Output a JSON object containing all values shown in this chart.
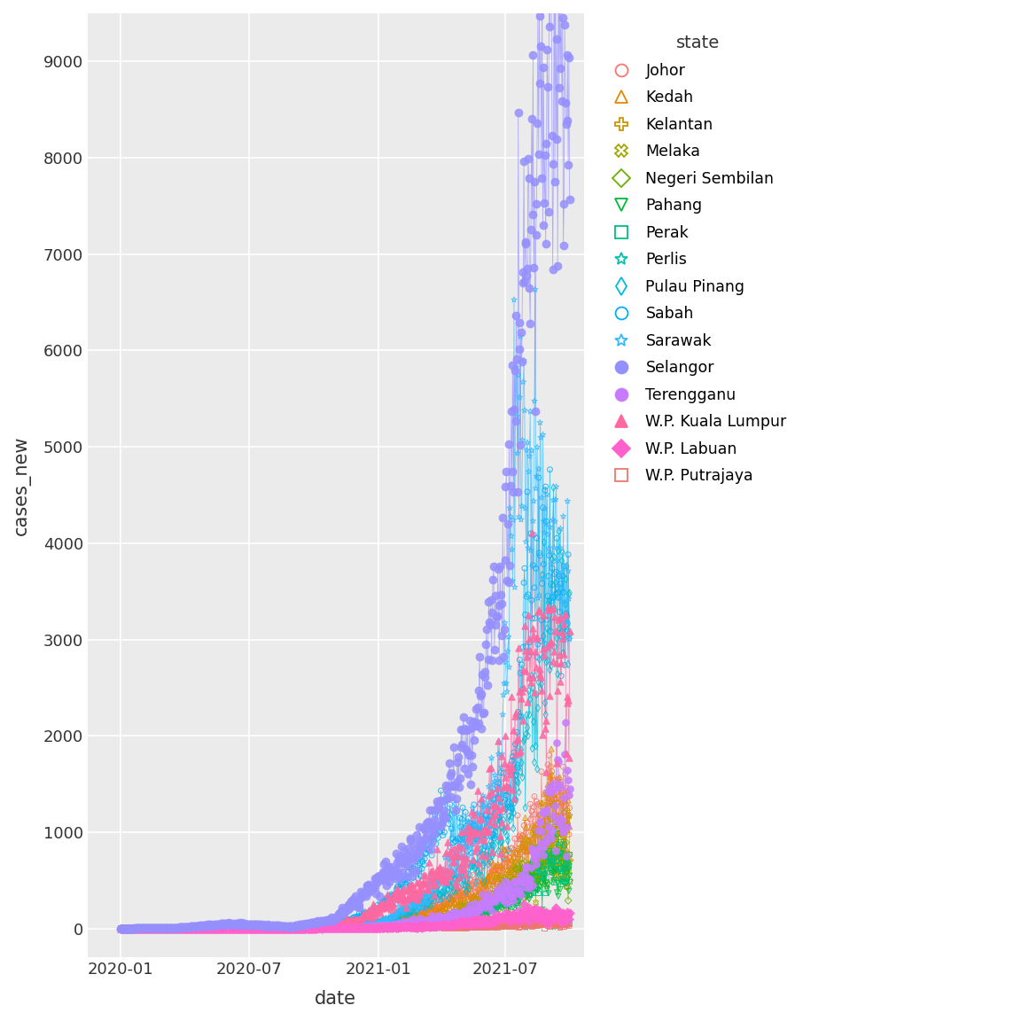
{
  "xlabel": "date",
  "ylabel": "cases_new",
  "legend_title": "state",
  "background_color": "#EBEBEB",
  "grid_color": "#FFFFFF",
  "ylim": [
    -300,
    9500
  ],
  "yticks": [
    0,
    1000,
    2000,
    3000,
    4000,
    5000,
    6000,
    7000,
    8000,
    9000
  ],
  "xtick_dates": [
    "2020-01-01",
    "2020-07-01",
    "2021-01-01",
    "2021-07-01"
  ],
  "xtick_labels": [
    "2020-01",
    "2020-07",
    "2021-01",
    "2021-07"
  ],
  "gg_colors": {
    "Johor": "#F8766D",
    "Kedah": "#E58700",
    "Kelantan": "#C99800",
    "Melaka": "#A3A500",
    "Negeri Sembilan": "#6BB100",
    "Pahang": "#00BA38",
    "Perak": "#00BF7D",
    "Perlis": "#00C0AF",
    "Pulau Pinang": "#00BCD8",
    "Sabah": "#00B0F6",
    "Sarawak": "#35B8FF",
    "Selangor": "#9590FF",
    "Terengganu": "#C77CFF",
    "W.P. Kuala Lumpur": "#FF68A1",
    "W.P. Labuan": "#FF61CC",
    "W.P. Putrajaya": "#F0766D"
  },
  "markers": {
    "Johor": {
      "m": "o",
      "fill": false,
      "ms": 18
    },
    "Kedah": {
      "m": "^",
      "fill": false,
      "ms": 18
    },
    "Kelantan": {
      "m": "P",
      "fill": false,
      "ms": 18
    },
    "Melaka": {
      "m": "X",
      "fill": false,
      "ms": 18
    },
    "Negeri Sembilan": {
      "m": "D",
      "fill": false,
      "ms": 16
    },
    "Pahang": {
      "m": "v",
      "fill": false,
      "ms": 18
    },
    "Perak": {
      "m": "s",
      "fill": false,
      "ms": 16
    },
    "Perlis": {
      "m": "*",
      "fill": false,
      "ms": 22
    },
    "Pulau Pinang": {
      "m": "d",
      "fill": false,
      "ms": 18
    },
    "Sabah": {
      "m": "o",
      "fill": false,
      "ms": 18
    },
    "Sarawak": {
      "m": "*",
      "fill": false,
      "ms": 22
    },
    "Selangor": {
      "m": "o",
      "fill": true,
      "ms": 40
    },
    "Terengganu": {
      "m": "o",
      "fill": true,
      "ms": 30
    },
    "W.P. Kuala Lumpur": {
      "m": "^",
      "fill": true,
      "ms": 28
    },
    "W.P. Labuan": {
      "m": "D",
      "fill": true,
      "ms": 24
    },
    "W.P. Putrajaya": {
      "m": "s",
      "fill": false,
      "ms": 16
    }
  },
  "legend_markers": {
    "Johor": {
      "m": "o",
      "fill": false
    },
    "Kedah": {
      "m": "^",
      "fill": false
    },
    "Kelantan": {
      "m": "P",
      "fill": false
    },
    "Melaka": {
      "m": "X",
      "fill": false
    },
    "Negeri Sembilan": {
      "m": "D",
      "fill": false
    },
    "Pahang": {
      "m": "v",
      "fill": false
    },
    "Perak": {
      "m": "s",
      "fill": false
    },
    "Perlis": {
      "m": "*",
      "fill": false
    },
    "Pulau Pinang": {
      "m": "d",
      "fill": false
    },
    "Sabah": {
      "m": "o",
      "fill": false
    },
    "Sarawak": {
      "m": "*",
      "fill": false
    },
    "Selangor": {
      "m": "o",
      "fill": true
    },
    "Terengganu": {
      "m": "o",
      "fill": true
    },
    "W.P. Kuala Lumpur": {
      "m": "^",
      "fill": true
    },
    "W.P. Labuan": {
      "m": "D",
      "fill": true
    },
    "W.P. Putrajaya": {
      "m": "s",
      "fill": false
    }
  },
  "state_order": [
    "Johor",
    "Kedah",
    "Kelantan",
    "Melaka",
    "Negeri Sembilan",
    "Pahang",
    "Perak",
    "Perlis",
    "Pulau Pinang",
    "Sabah",
    "Sarawak",
    "Selangor",
    "Terengganu",
    "W.P. Kuala Lumpur",
    "W.P. Labuan",
    "W.P. Putrajaya"
  ]
}
